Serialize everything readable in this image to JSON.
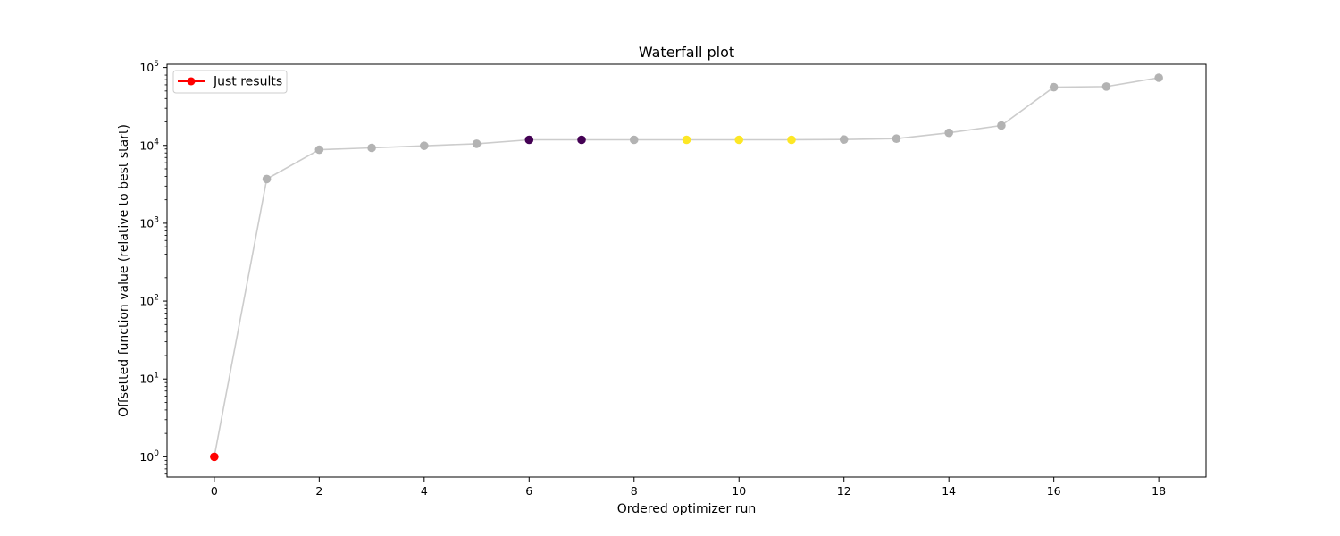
{
  "chart_data": {
    "type": "scatter",
    "title": "Waterfall plot",
    "xlabel": "Ordered optimizer run",
    "ylabel": "Offsetted function value (relative to best start)",
    "yscale": "log",
    "xlim": [
      -0.9,
      18.9
    ],
    "ylim": [
      0.55,
      110000
    ],
    "xticks": [
      0,
      2,
      4,
      6,
      8,
      10,
      12,
      14,
      16,
      18
    ],
    "yticks": [
      {
        "value": 1,
        "base": "10",
        "exp": "0"
      },
      {
        "value": 10,
        "base": "10",
        "exp": "1"
      },
      {
        "value": 100,
        "base": "10",
        "exp": "2"
      },
      {
        "value": 1000,
        "base": "10",
        "exp": "3"
      },
      {
        "value": 10000,
        "base": "10",
        "exp": "4"
      },
      {
        "value": 100000,
        "base": "10",
        "exp": "5"
      }
    ],
    "grid": false,
    "legend": {
      "position": "top-left",
      "entries": [
        {
          "label": "Just results",
          "color": "#ff0000"
        }
      ]
    },
    "line_color": "#cccccc",
    "x": [
      0,
      1,
      2,
      3,
      4,
      5,
      6,
      7,
      8,
      9,
      10,
      11,
      12,
      13,
      14,
      15,
      16,
      17,
      18
    ],
    "y": [
      1,
      3700,
      8800,
      9300,
      9900,
      10500,
      11800,
      11800,
      11800,
      11800,
      11800,
      11800,
      11900,
      12200,
      14500,
      18000,
      56000,
      57000,
      74000
    ],
    "point_colors": [
      "#ff0000",
      "#b3b3b3",
      "#b3b3b3",
      "#b3b3b3",
      "#b3b3b3",
      "#b3b3b3",
      "#440154",
      "#440154",
      "#b3b3b3",
      "#fde725",
      "#fde725",
      "#fde725",
      "#b3b3b3",
      "#b3b3b3",
      "#b3b3b3",
      "#b3b3b3",
      "#b3b3b3",
      "#b3b3b3",
      "#b3b3b3"
    ]
  }
}
